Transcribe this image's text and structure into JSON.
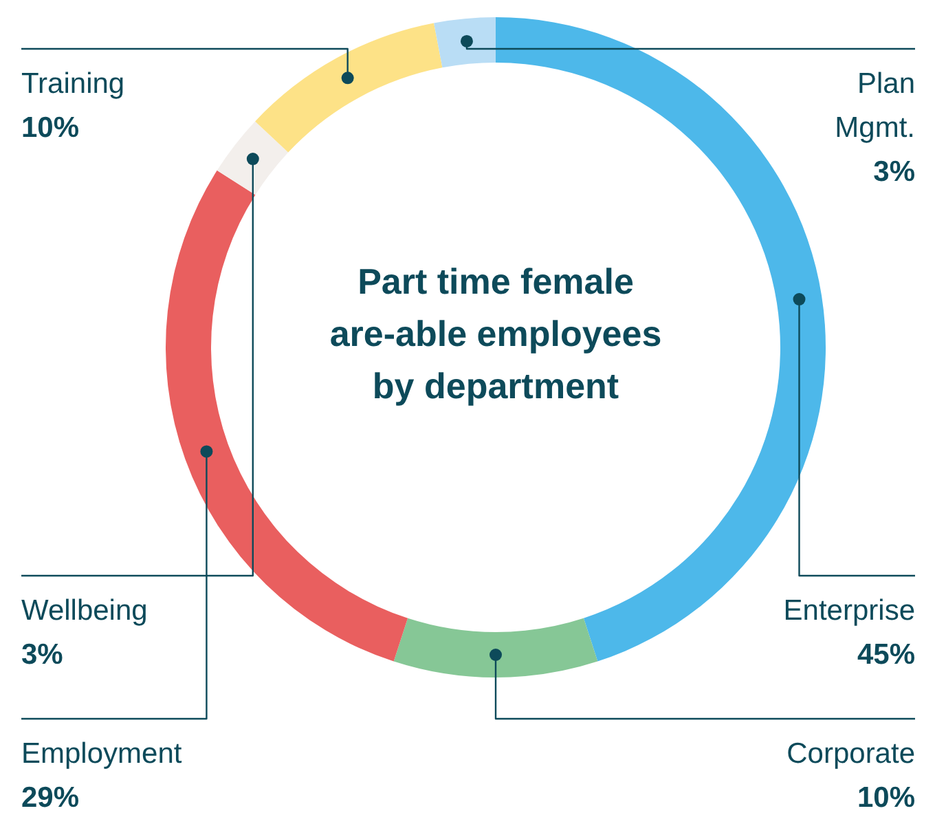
{
  "chart_data": {
    "type": "donut",
    "title": "Part time female\nare-able employees\nby department",
    "categories": [
      "Enterprise",
      "Corporate",
      "Employment",
      "Wellbeing",
      "Training",
      "Plan\nMgmt."
    ],
    "values": [
      45,
      10,
      29,
      3,
      10,
      3
    ],
    "value_labels": [
      "45%",
      "10%",
      "29%",
      "3%",
      "10%",
      "3%"
    ],
    "colors": [
      "#4db8ea",
      "#86c796",
      "#e95f5f",
      "#f3efec",
      "#fde287",
      "#b9ddf5"
    ]
  }
}
